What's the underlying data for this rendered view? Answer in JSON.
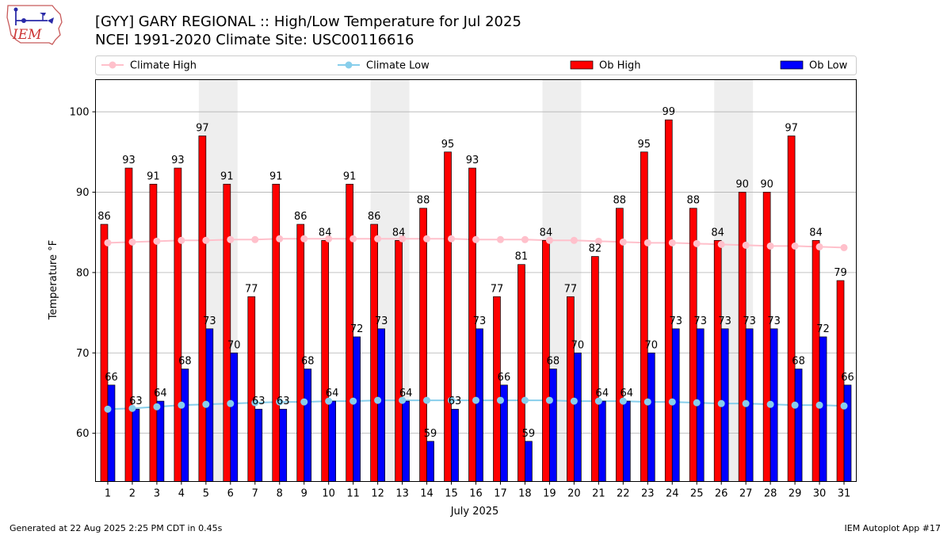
{
  "header": {
    "title_line1": "[GYY] GARY REGIONAL :: High/Low Temperature for Jul 2025",
    "title_line2": "NCEI 1991-2020 Climate Site: USC00116616",
    "logo_text": "IEM"
  },
  "footer": {
    "generated": "Generated at 22 Aug 2025 2:25 PM CDT in 0.45s",
    "app": "IEM Autoplot App #17"
  },
  "colors": {
    "ob_high": "#ff0000",
    "ob_low": "#0000ff",
    "climate_high": "#ffc0cb",
    "climate_low": "#87ceeb",
    "weekend_band": "#eeeeee",
    "grid": "#b0b0b0"
  },
  "chart_data": {
    "type": "bar",
    "title": "[GYY] GARY REGIONAL :: High/Low Temperature for Jul 2025",
    "subtitle": "NCEI 1991-2020 Climate Site: USC00116616",
    "xlabel": "July 2025",
    "ylabel": "Temperature °F",
    "ylim": [
      54,
      104
    ],
    "yticks": [
      60,
      70,
      80,
      90,
      100
    ],
    "grid": true,
    "legend_position": "top",
    "categories": [
      1,
      2,
      3,
      4,
      5,
      6,
      7,
      8,
      9,
      10,
      11,
      12,
      13,
      14,
      15,
      16,
      17,
      18,
      19,
      20,
      21,
      22,
      23,
      24,
      25,
      26,
      27,
      28,
      29,
      30,
      31
    ],
    "shaded_day_pairs": [
      [
        5,
        6
      ],
      [
        12,
        13
      ],
      [
        19,
        20
      ],
      [
        26,
        27
      ]
    ],
    "series": [
      {
        "name": "Ob High",
        "kind": "bar",
        "values": [
          86,
          93,
          91,
          93,
          97,
          91,
          77,
          91,
          86,
          84,
          91,
          86,
          84,
          88,
          95,
          93,
          77,
          81,
          84,
          77,
          82,
          88,
          95,
          99,
          88,
          84,
          90,
          90,
          97,
          84,
          79
        ]
      },
      {
        "name": "Ob Low",
        "kind": "bar",
        "values": [
          66,
          63,
          64,
          68,
          73,
          70,
          63,
          63,
          68,
          64,
          72,
          73,
          64,
          59,
          63,
          73,
          66,
          59,
          68,
          70,
          64,
          64,
          70,
          73,
          73,
          73,
          73,
          73,
          68,
          72,
          66
        ]
      },
      {
        "name": "Climate High",
        "kind": "line",
        "values": [
          83.7,
          83.8,
          83.9,
          84.0,
          84.0,
          84.1,
          84.1,
          84.2,
          84.2,
          84.2,
          84.2,
          84.2,
          84.2,
          84.2,
          84.2,
          84.1,
          84.1,
          84.1,
          84.0,
          84.0,
          83.9,
          83.8,
          83.7,
          83.7,
          83.6,
          83.5,
          83.4,
          83.3,
          83.3,
          83.2,
          83.1
        ]
      },
      {
        "name": "Climate Low",
        "kind": "line",
        "values": [
          63.0,
          63.1,
          63.3,
          63.5,
          63.6,
          63.7,
          63.8,
          63.9,
          63.9,
          64.0,
          64.0,
          64.1,
          64.1,
          64.1,
          64.1,
          64.1,
          64.1,
          64.1,
          64.1,
          64.0,
          64.0,
          64.0,
          63.9,
          63.9,
          63.8,
          63.7,
          63.7,
          63.6,
          63.5,
          63.5,
          63.4
        ]
      }
    ]
  }
}
